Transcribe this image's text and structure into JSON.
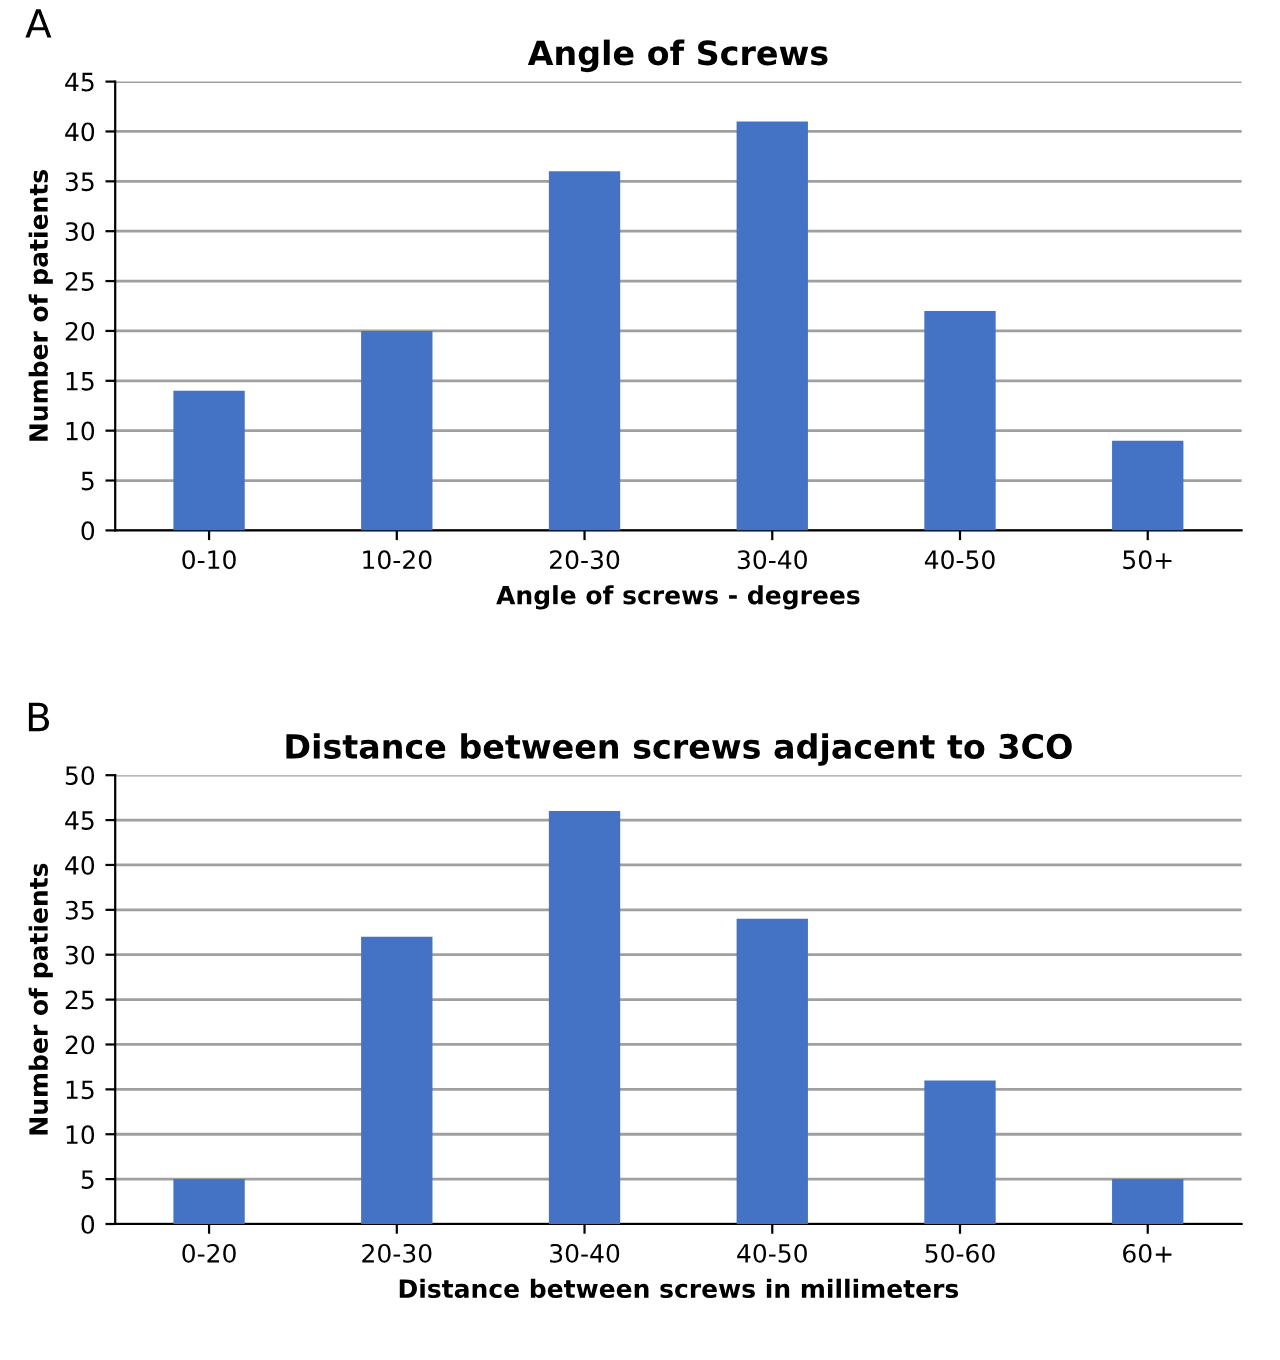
{
  "chart_data": [
    {
      "type": "bar",
      "title": "Angle of Screws",
      "xlabel": "Angle of screws - degrees",
      "ylabel": "Number of patients",
      "annotations": [
        "A"
      ],
      "categories": [
        "0-10",
        "10-20",
        "20-30",
        "30-40",
        "40-50",
        "50+"
      ],
      "values": [
        14,
        20,
        36,
        41,
        22,
        9
      ],
      "color": "#4472c4",
      "ylim": [
        0,
        45
      ],
      "yticks": [
        0,
        5,
        10,
        15,
        20,
        25,
        30,
        35,
        40,
        45
      ],
      "grid": "y"
    },
    {
      "type": "bar",
      "title": "Distance between screws adjacent to 3CO",
      "xlabel": "Distance between screws in millimeters",
      "ylabel": "Number of patients",
      "annotations": [
        "B"
      ],
      "categories": [
        "0-20",
        "20-30",
        "30-40",
        "40-50",
        "50-60",
        "60+"
      ],
      "values": [
        5,
        32,
        46,
        34,
        16,
        5
      ],
      "color": "#4472c4",
      "ylim": [
        0,
        50
      ],
      "yticks": [
        0,
        5,
        10,
        15,
        20,
        25,
        30,
        35,
        40,
        45,
        50
      ],
      "grid": "y"
    }
  ]
}
